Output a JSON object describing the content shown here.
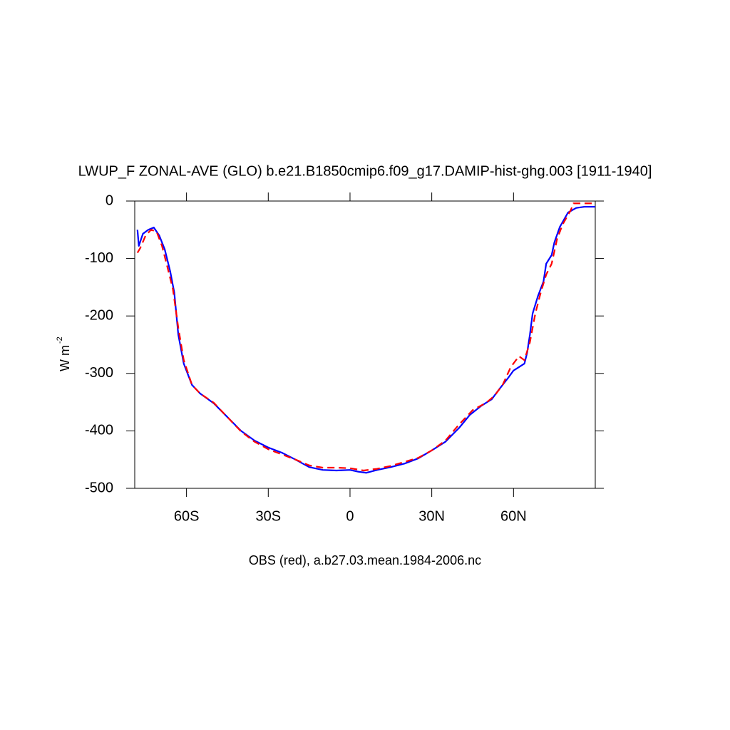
{
  "chart_data": {
    "type": "line",
    "title": "LWUP_F ZONAL-AVE (GLO) b.e21.B1850cmip6.f09_g17.DAMIP-hist-ghg.003 [1911-1940]",
    "x_label": "OBS (red), a.b27.03.mean.1984-2006.nc",
    "y_label": "W m",
    "y_label_sup": "-2",
    "xlim": [
      -79,
      90
    ],
    "ylim": [
      -500,
      0
    ],
    "xticks": [
      {
        "value": -60,
        "label": "60S"
      },
      {
        "value": -30,
        "label": "30S"
      },
      0,
      {
        "value": 30,
        "label": "30N"
      },
      {
        "value": 60,
        "label": "60N"
      }
    ],
    "yticks": [
      0,
      -100,
      -200,
      -300,
      -400,
      -500
    ],
    "grid": false,
    "series": [
      {
        "name": "b.e21.B1850cmip6.f09_g17.DAMIP-hist-ghg.003",
        "color": "#0000ff",
        "dash": false,
        "x": [
          -78,
          -77.5,
          -76,
          -74,
          -72,
          -70,
          -68,
          -66,
          -64.5,
          -63,
          -61,
          -58,
          -55,
          -50,
          -45,
          -40,
          -35,
          -30,
          -25,
          -20,
          -15,
          -10,
          -5,
          0,
          3,
          6,
          10,
          15,
          20,
          25,
          30,
          35,
          40,
          44,
          48,
          52,
          55,
          58,
          60,
          62,
          64,
          65,
          66,
          67,
          69,
          71,
          72,
          74,
          75,
          77,
          80,
          83,
          86,
          90
        ],
        "values": [
          -50,
          -78,
          -57,
          -50,
          -46,
          -60,
          -84,
          -122,
          -159,
          -233,
          -283,
          -320,
          -335,
          -352,
          -376,
          -400,
          -417,
          -429,
          -438,
          -450,
          -463,
          -468,
          -469,
          -468,
          -471,
          -473,
          -468,
          -463,
          -457,
          -448,
          -434,
          -419,
          -395,
          -372,
          -357,
          -345,
          -326,
          -308,
          -295,
          -289,
          -283,
          -264,
          -233,
          -196,
          -165,
          -140,
          -109,
          -94,
          -72,
          -45,
          -20,
          -12,
          -10,
          -10
        ]
      },
      {
        "name": "OBS",
        "color": "#ff0000",
        "dash": true,
        "x": [
          -78,
          -77,
          -75,
          -73,
          -71,
          -69,
          -67,
          -65,
          -63,
          -61,
          -58,
          -55,
          -50,
          -45,
          -40,
          -35,
          -30,
          -25,
          -20,
          -15,
          -10,
          -5,
          0,
          5,
          10,
          15,
          20,
          25,
          30,
          35,
          40,
          45,
          50,
          53,
          56,
          59,
          62,
          64,
          66,
          68,
          70,
          72,
          74,
          76,
          78,
          81,
          82,
          86,
          90
        ],
        "values": [
          -90,
          -82,
          -60,
          -50,
          -53,
          -78,
          -115,
          -153,
          -221,
          -277,
          -320,
          -335,
          -351,
          -376,
          -401,
          -419,
          -432,
          -441,
          -450,
          -460,
          -464,
          -464,
          -465,
          -469,
          -466,
          -461,
          -454,
          -447,
          -434,
          -417,
          -389,
          -364,
          -351,
          -339,
          -320,
          -289,
          -270,
          -277,
          -246,
          -196,
          -159,
          -128,
          -109,
          -66,
          -41,
          -16,
          -4,
          -4,
          -4
        ]
      }
    ]
  }
}
